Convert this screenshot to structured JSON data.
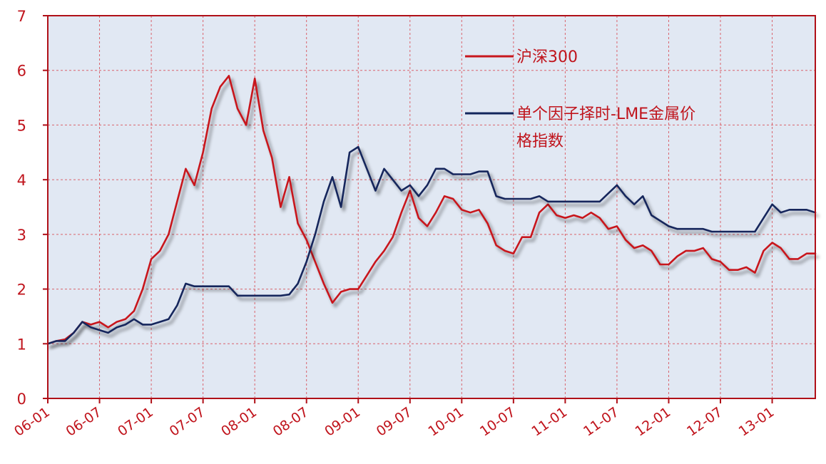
{
  "chart_data": {
    "type": "line",
    "title": "",
    "xlabel": "",
    "ylabel": "",
    "ylim": [
      0,
      7
    ],
    "yticks": [
      "0",
      "1",
      "2",
      "3",
      "4",
      "5",
      "6",
      "7"
    ],
    "x_tick_labels": [
      "06-01",
      "06-07",
      "07-01",
      "07-07",
      "08-01",
      "08-07",
      "09-01",
      "09-07",
      "10-01",
      "10-07",
      "11-01",
      "11-07",
      "12-01",
      "12-07",
      "13-01"
    ],
    "x_range": [
      "2006-01",
      "2013-06"
    ],
    "grid": true,
    "legend_position": "top-right",
    "series": [
      {
        "name": "沪深300",
        "color": "#c8161d",
        "points": [
          [
            "2006-01",
            1.0
          ],
          [
            "2006-02",
            1.05
          ],
          [
            "2006-03",
            1.08
          ],
          [
            "2006-04",
            1.2
          ],
          [
            "2006-05",
            1.4
          ],
          [
            "2006-06",
            1.35
          ],
          [
            "2006-07",
            1.4
          ],
          [
            "2006-08",
            1.3
          ],
          [
            "2006-09",
            1.4
          ],
          [
            "2006-10",
            1.45
          ],
          [
            "2006-11",
            1.6
          ],
          [
            "2006-12",
            2.0
          ],
          [
            "2007-01",
            2.55
          ],
          [
            "2007-02",
            2.7
          ],
          [
            "2007-03",
            3.0
          ],
          [
            "2007-04",
            3.6
          ],
          [
            "2007-05",
            4.2
          ],
          [
            "2007-06",
            3.9
          ],
          [
            "2007-07",
            4.5
          ],
          [
            "2007-08",
            5.3
          ],
          [
            "2007-09",
            5.7
          ],
          [
            "2007-10",
            5.9
          ],
          [
            "2007-11",
            5.3
          ],
          [
            "2007-12",
            5.0
          ],
          [
            "2008-01",
            5.85
          ],
          [
            "2008-02",
            4.9
          ],
          [
            "2008-03",
            4.4
          ],
          [
            "2008-04",
            3.5
          ],
          [
            "2008-05",
            4.05
          ],
          [
            "2008-06",
            3.2
          ],
          [
            "2008-07",
            2.9
          ],
          [
            "2008-08",
            2.5
          ],
          [
            "2008-09",
            2.1
          ],
          [
            "2008-10",
            1.75
          ],
          [
            "2008-11",
            1.95
          ],
          [
            "2008-12",
            2.0
          ],
          [
            "2009-01",
            2.0
          ],
          [
            "2009-02",
            2.25
          ],
          [
            "2009-03",
            2.5
          ],
          [
            "2009-04",
            2.7
          ],
          [
            "2009-05",
            2.95
          ],
          [
            "2009-06",
            3.4
          ],
          [
            "2009-07",
            3.8
          ],
          [
            "2009-08",
            3.3
          ],
          [
            "2009-09",
            3.15
          ],
          [
            "2009-10",
            3.4
          ],
          [
            "2009-11",
            3.7
          ],
          [
            "2009-12",
            3.65
          ],
          [
            "2010-01",
            3.45
          ],
          [
            "2010-02",
            3.4
          ],
          [
            "2010-03",
            3.45
          ],
          [
            "2010-04",
            3.2
          ],
          [
            "2010-05",
            2.8
          ],
          [
            "2010-06",
            2.7
          ],
          [
            "2010-07",
            2.65
          ],
          [
            "2010-08",
            2.95
          ],
          [
            "2010-09",
            2.95
          ],
          [
            "2010-10",
            3.4
          ],
          [
            "2010-11",
            3.55
          ],
          [
            "2010-12",
            3.35
          ],
          [
            "2011-01",
            3.3
          ],
          [
            "2011-02",
            3.35
          ],
          [
            "2011-03",
            3.3
          ],
          [
            "2011-04",
            3.4
          ],
          [
            "2011-05",
            3.3
          ],
          [
            "2011-06",
            3.1
          ],
          [
            "2011-07",
            3.15
          ],
          [
            "2011-08",
            2.9
          ],
          [
            "2011-09",
            2.75
          ],
          [
            "2011-10",
            2.8
          ],
          [
            "2011-11",
            2.7
          ],
          [
            "2011-12",
            2.45
          ],
          [
            "2012-01",
            2.45
          ],
          [
            "2012-02",
            2.6
          ],
          [
            "2012-03",
            2.7
          ],
          [
            "2012-04",
            2.7
          ],
          [
            "2012-05",
            2.75
          ],
          [
            "2012-06",
            2.55
          ],
          [
            "2012-07",
            2.5
          ],
          [
            "2012-08",
            2.35
          ],
          [
            "2012-09",
            2.35
          ],
          [
            "2012-10",
            2.4
          ],
          [
            "2012-11",
            2.3
          ],
          [
            "2012-12",
            2.7
          ],
          [
            "2013-01",
            2.85
          ],
          [
            "2013-02",
            2.75
          ],
          [
            "2013-03",
            2.55
          ],
          [
            "2013-04",
            2.55
          ],
          [
            "2013-05",
            2.65
          ],
          [
            "2013-06",
            2.65
          ]
        ]
      },
      {
        "name": "单个因子择时-LME金属价格指数",
        "color": "#13265c",
        "points": [
          [
            "2006-01",
            1.0
          ],
          [
            "2006-02",
            1.05
          ],
          [
            "2006-03",
            1.05
          ],
          [
            "2006-04",
            1.2
          ],
          [
            "2006-05",
            1.4
          ],
          [
            "2006-06",
            1.3
          ],
          [
            "2006-07",
            1.25
          ],
          [
            "2006-08",
            1.2
          ],
          [
            "2006-09",
            1.3
          ],
          [
            "2006-10",
            1.35
          ],
          [
            "2006-11",
            1.45
          ],
          [
            "2006-12",
            1.35
          ],
          [
            "2007-01",
            1.35
          ],
          [
            "2007-02",
            1.4
          ],
          [
            "2007-03",
            1.45
          ],
          [
            "2007-04",
            1.7
          ],
          [
            "2007-05",
            2.1
          ],
          [
            "2007-06",
            2.05
          ],
          [
            "2007-07",
            2.05
          ],
          [
            "2007-08",
            2.05
          ],
          [
            "2007-09",
            2.05
          ],
          [
            "2007-10",
            2.05
          ],
          [
            "2007-11",
            1.88
          ],
          [
            "2007-12",
            1.88
          ],
          [
            "2008-01",
            1.88
          ],
          [
            "2008-02",
            1.88
          ],
          [
            "2008-03",
            1.88
          ],
          [
            "2008-04",
            1.88
          ],
          [
            "2008-05",
            1.9
          ],
          [
            "2008-06",
            2.1
          ],
          [
            "2008-07",
            2.5
          ],
          [
            "2008-08",
            3.0
          ],
          [
            "2008-09",
            3.6
          ],
          [
            "2008-10",
            4.05
          ],
          [
            "2008-11",
            3.5
          ],
          [
            "2008-12",
            4.5
          ],
          [
            "2009-01",
            4.6
          ],
          [
            "2009-02",
            4.2
          ],
          [
            "2009-03",
            3.8
          ],
          [
            "2009-04",
            4.2
          ],
          [
            "2009-05",
            4.0
          ],
          [
            "2009-06",
            3.8
          ],
          [
            "2009-07",
            3.9
          ],
          [
            "2009-08",
            3.7
          ],
          [
            "2009-09",
            3.9
          ],
          [
            "2009-10",
            4.2
          ],
          [
            "2009-11",
            4.2
          ],
          [
            "2009-12",
            4.1
          ],
          [
            "2010-01",
            4.1
          ],
          [
            "2010-02",
            4.1
          ],
          [
            "2010-03",
            4.15
          ],
          [
            "2010-04",
            4.15
          ],
          [
            "2010-05",
            3.7
          ],
          [
            "2010-06",
            3.65
          ],
          [
            "2010-07",
            3.65
          ],
          [
            "2010-08",
            3.65
          ],
          [
            "2010-09",
            3.65
          ],
          [
            "2010-10",
            3.7
          ],
          [
            "2010-11",
            3.6
          ],
          [
            "2010-12",
            3.6
          ],
          [
            "2011-01",
            3.6
          ],
          [
            "2011-02",
            3.6
          ],
          [
            "2011-03",
            3.6
          ],
          [
            "2011-04",
            3.6
          ],
          [
            "2011-05",
            3.6
          ],
          [
            "2011-06",
            3.75
          ],
          [
            "2011-07",
            3.9
          ],
          [
            "2011-08",
            3.7
          ],
          [
            "2011-09",
            3.55
          ],
          [
            "2011-10",
            3.7
          ],
          [
            "2011-11",
            3.35
          ],
          [
            "2011-12",
            3.25
          ],
          [
            "2012-01",
            3.15
          ],
          [
            "2012-02",
            3.1
          ],
          [
            "2012-03",
            3.1
          ],
          [
            "2012-04",
            3.1
          ],
          [
            "2012-05",
            3.1
          ],
          [
            "2012-06",
            3.05
          ],
          [
            "2012-07",
            3.05
          ],
          [
            "2012-08",
            3.05
          ],
          [
            "2012-09",
            3.05
          ],
          [
            "2012-10",
            3.05
          ],
          [
            "2012-11",
            3.05
          ],
          [
            "2012-12",
            3.3
          ],
          [
            "2013-01",
            3.55
          ],
          [
            "2013-02",
            3.4
          ],
          [
            "2013-03",
            3.45
          ],
          [
            "2013-04",
            3.45
          ],
          [
            "2013-05",
            3.45
          ],
          [
            "2013-06",
            3.4
          ]
        ]
      }
    ]
  },
  "legend": {
    "series0_label": "沪深300",
    "series1_label_line1": "单个因子择时-LME金属价",
    "series1_label_line2": "格指数"
  }
}
